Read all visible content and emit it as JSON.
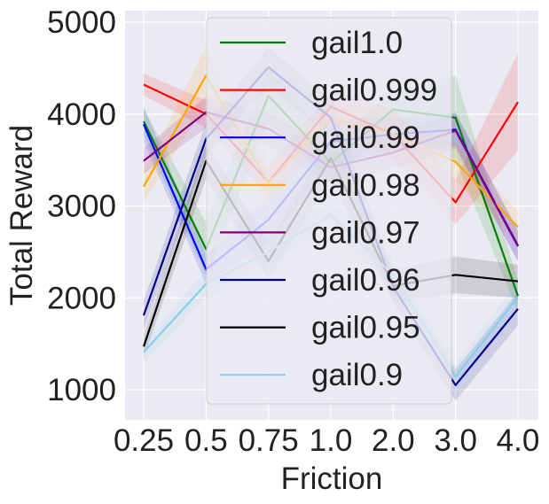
{
  "chart_data": {
    "type": "line",
    "xlabel": "Friction",
    "ylabel": "Total Reward",
    "categories": [
      "0.25",
      "0.5",
      "0.75",
      "1.0",
      "2.0",
      "3.0",
      "4.0"
    ],
    "ylim": [
      700,
      5100
    ],
    "yticks": [
      1000,
      2000,
      3000,
      4000,
      5000
    ],
    "grid": true,
    "legend_position": "top-center",
    "series": [
      {
        "name": "gail1.0",
        "color": "#008000",
        "values": [
          3920,
          2530,
          4200,
          3470,
          4050,
          3960,
          2020
        ],
        "band": [
          [
            3780,
            4060
          ],
          [
            2240,
            2820
          ],
          [
            3900,
            4500
          ],
          [
            3250,
            3690
          ],
          [
            3850,
            4250
          ],
          [
            3500,
            4420
          ],
          [
            1850,
            2190
          ]
        ]
      },
      {
        "name": "gail0.999",
        "color": "#ff0000",
        "values": [
          4320,
          4000,
          3260,
          4080,
          3780,
          3040,
          4130
        ],
        "band": [
          [
            4200,
            4440
          ],
          [
            3850,
            4150
          ],
          [
            3100,
            3420
          ],
          [
            3900,
            4260
          ],
          [
            3500,
            4060
          ],
          [
            2800,
            3280
          ],
          [
            3600,
            4660
          ]
        ]
      },
      {
        "name": "gail0.99",
        "color": "#0000ff",
        "values": [
          3890,
          2310,
          2850,
          3700,
          3780,
          3830,
          2570
        ],
        "band": [
          [
            3700,
            4080
          ],
          [
            2150,
            2470
          ],
          [
            2600,
            3100
          ],
          [
            3450,
            3950
          ],
          [
            3600,
            3960
          ],
          [
            3650,
            4010
          ],
          [
            2400,
            2740
          ]
        ]
      },
      {
        "name": "gail0.98",
        "color": "#ffa500",
        "values": [
          3210,
          4420,
          3250,
          3950,
          3780,
          3480,
          2770
        ],
        "band": [
          [
            3050,
            3370
          ],
          [
            4100,
            4740
          ],
          [
            3050,
            3450
          ],
          [
            3750,
            4150
          ],
          [
            3550,
            4010
          ],
          [
            3280,
            3680
          ],
          [
            2600,
            2940
          ]
        ]
      },
      {
        "name": "gail0.97",
        "color": "#800080",
        "values": [
          3490,
          4020,
          3840,
          3420,
          3580,
          3820,
          2560
        ],
        "band": [
          [
            3350,
            3630
          ],
          [
            3850,
            4190
          ],
          [
            3650,
            4030
          ],
          [
            3250,
            3590
          ],
          [
            3400,
            3760
          ],
          [
            3620,
            4020
          ],
          [
            2400,
            2720
          ]
        ]
      },
      {
        "name": "gail0.96",
        "color": "#00008b",
        "values": [
          1810,
          3730,
          4510,
          3960,
          2120,
          1050,
          1880
        ],
        "band": [
          [
            1650,
            1970
          ],
          [
            3550,
            3910
          ],
          [
            4300,
            4720
          ],
          [
            3750,
            4170
          ],
          [
            1950,
            2290
          ],
          [
            880,
            1220
          ],
          [
            1700,
            2060
          ]
        ]
      },
      {
        "name": "gail0.95",
        "color": "#000000",
        "values": [
          1470,
          3490,
          2400,
          3520,
          2130,
          2250,
          2180
        ],
        "band": [
          [
            1350,
            1590
          ],
          [
            3300,
            3680
          ],
          [
            2200,
            2600
          ],
          [
            3300,
            3740
          ],
          [
            1950,
            2310
          ],
          [
            2050,
            2450
          ],
          [
            2000,
            2360
          ]
        ]
      },
      {
        "name": "gail0.9",
        "color": "#87ceeb",
        "values": [
          1410,
          2150,
          2500,
          2900,
          2250,
          1140,
          2010
        ],
        "band": [
          [
            1300,
            1520
          ],
          [
            2000,
            2300
          ],
          [
            2350,
            2650
          ],
          [
            2750,
            3050
          ],
          [
            2100,
            2400
          ],
          [
            1000,
            1280
          ],
          [
            1850,
            2170
          ]
        ]
      }
    ]
  }
}
